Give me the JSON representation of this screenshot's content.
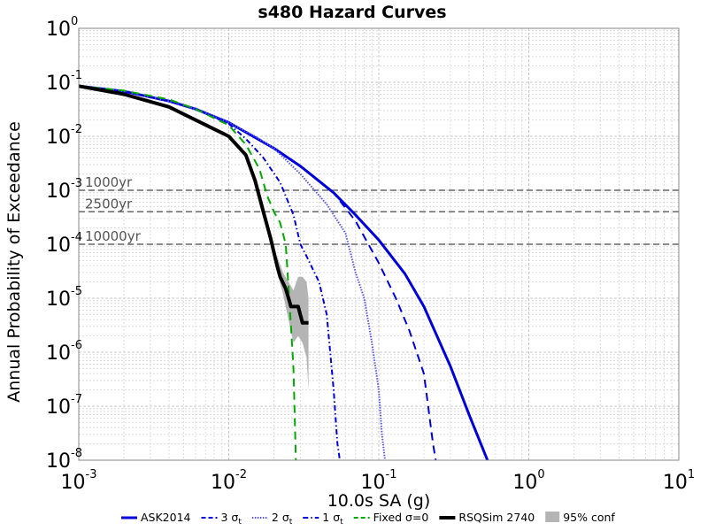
{
  "chart_data": {
    "type": "line",
    "title": "s480 Hazard Curves",
    "xlabel": "10.0s SA (g)",
    "ylabel": "Annual Probability of Exceedance",
    "xscale": "log",
    "yscale": "log",
    "xlim": [
      0.001,
      10
    ],
    "ylim": [
      1e-08,
      1
    ],
    "grid": true,
    "legend_position": "bottom",
    "x_ticks": [
      {
        "value": 0.001,
        "base": "10",
        "exp": "-3"
      },
      {
        "value": 0.01,
        "base": "10",
        "exp": "-2"
      },
      {
        "value": 0.1,
        "base": "10",
        "exp": "-1"
      },
      {
        "value": 1,
        "base": "10",
        "exp": "0"
      },
      {
        "value": 10,
        "base": "10",
        "exp": "1"
      }
    ],
    "y_ticks": [
      {
        "value": 1,
        "base": "10",
        "exp": "0"
      },
      {
        "value": 0.1,
        "base": "10",
        "exp": "-1"
      },
      {
        "value": 0.01,
        "base": "10",
        "exp": "-2"
      },
      {
        "value": 0.001,
        "base": "10",
        "exp": "-3"
      },
      {
        "value": 0.0001,
        "base": "10",
        "exp": "-4"
      },
      {
        "value": 1e-05,
        "base": "10",
        "exp": "-5"
      },
      {
        "value": 1e-06,
        "base": "10",
        "exp": "-6"
      },
      {
        "value": 1e-07,
        "base": "10",
        "exp": "-7"
      },
      {
        "value": 1e-08,
        "base": "10",
        "exp": "-8"
      }
    ],
    "reference_lines": [
      {
        "label": "1000yr",
        "y": 0.001
      },
      {
        "label": "2500yr",
        "y": 0.0004
      },
      {
        "label": "10000yr",
        "y": 0.0001
      }
    ],
    "series": [
      {
        "name": "ASK2014",
        "color": "#0000dd",
        "dash": "solid",
        "width": 3,
        "x": [
          0.001,
          0.002,
          0.004,
          0.006,
          0.01,
          0.02,
          0.03,
          0.05,
          0.07,
          0.1,
          0.15,
          0.2,
          0.3,
          0.4,
          0.53
        ],
        "y": [
          0.085,
          0.068,
          0.045,
          0.032,
          0.018,
          0.006,
          0.0028,
          0.0009,
          0.00035,
          0.00012,
          2.8e-05,
          7e-06,
          5.5e-07,
          7e-08,
          1e-08
        ]
      },
      {
        "name": "3 σ",
        "subscript": "t",
        "color": "#0000dd",
        "dash": "dashed",
        "width": 2,
        "x": [
          0.001,
          0.002,
          0.004,
          0.006,
          0.01,
          0.02,
          0.03,
          0.05,
          0.07,
          0.1,
          0.13,
          0.16,
          0.2,
          0.23,
          0.24
        ],
        "y": [
          0.085,
          0.068,
          0.045,
          0.032,
          0.018,
          0.006,
          0.0028,
          0.0009,
          0.00027,
          4.5e-05,
          1e-05,
          2.5e-06,
          4e-07,
          2e-08,
          1e-08
        ]
      },
      {
        "name": "2 σ",
        "subscript": "t",
        "color": "#5555ee",
        "dash": "dotted",
        "width": 2,
        "x": [
          0.001,
          0.002,
          0.004,
          0.006,
          0.01,
          0.015,
          0.02,
          0.03,
          0.045,
          0.06,
          0.07,
          0.08,
          0.09,
          0.1,
          0.105,
          0.11
        ],
        "y": [
          0.085,
          0.068,
          0.045,
          0.032,
          0.018,
          0.01,
          0.006,
          0.002,
          0.00055,
          0.00016,
          3e-05,
          1e-05,
          1.5e-06,
          2e-07,
          3e-08,
          1e-08
        ]
      },
      {
        "name": "1 σ",
        "subscript": "t",
        "color": "#0000dd",
        "dash": "dashdot",
        "width": 2,
        "x": [
          0.001,
          0.002,
          0.004,
          0.006,
          0.01,
          0.013,
          0.017,
          0.022,
          0.027,
          0.03,
          0.033,
          0.04,
          0.045,
          0.05,
          0.053,
          0.055
        ],
        "y": [
          0.085,
          0.068,
          0.045,
          0.032,
          0.017,
          0.009,
          0.004,
          0.0014,
          0.00035,
          0.0001,
          6e-05,
          2e-05,
          5e-06,
          2e-07,
          2e-08,
          1e-08
        ]
      },
      {
        "name": "Fixed σ=0",
        "color": "#00aa00",
        "dash": "dashed",
        "width": 2,
        "x": [
          0.001,
          0.002,
          0.004,
          0.006,
          0.01,
          0.013,
          0.016,
          0.018,
          0.02,
          0.022,
          0.024,
          0.026,
          0.027,
          0.028
        ],
        "y": [
          0.085,
          0.07,
          0.048,
          0.032,
          0.016,
          0.007,
          0.0025,
          0.0008,
          0.0004,
          0.00025,
          0.0001,
          3e-06,
          5e-07,
          1e-08
        ]
      },
      {
        "name": "RSQSim 2740",
        "color": "#000000",
        "dash": "solid",
        "width": 4,
        "x": [
          0.001,
          0.002,
          0.004,
          0.006,
          0.01,
          0.013,
          0.015,
          0.017,
          0.019,
          0.021,
          0.022,
          0.024,
          0.026,
          0.029,
          0.031,
          0.034
        ],
        "y": [
          0.085,
          0.06,
          0.035,
          0.02,
          0.01,
          0.0045,
          0.0015,
          0.0004,
          0.00013,
          4e-05,
          2.5e-05,
          1.5e-05,
          7e-06,
          7e-06,
          3.5e-06,
          3.5e-06
        ]
      }
    ],
    "confidence_band": {
      "name": "95% conf",
      "color": "#b4b4b4",
      "x": [
        0.021,
        0.023,
        0.025,
        0.027,
        0.029,
        0.031,
        0.033,
        0.034
      ],
      "upper": [
        6e-05,
        3e-05,
        2e-05,
        1.4e-05,
        2.5e-05,
        2.5e-05,
        2e-05,
        1e-05
      ],
      "lower": [
        3e-05,
        1.2e-05,
        4e-06,
        1.5e-06,
        2e-06,
        1.5e-06,
        8e-07,
        2e-07
      ]
    }
  }
}
